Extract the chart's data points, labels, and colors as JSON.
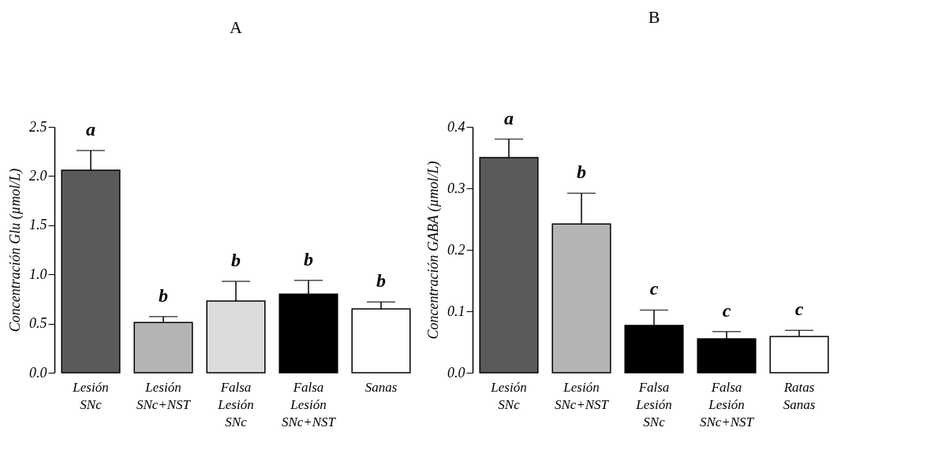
{
  "chart_data": [
    {
      "type": "bar",
      "title": "A",
      "ylabel": "Concentración Glu (µmol/L)",
      "categories": [
        "Lesión SNc",
        "Lesión SNc+NST",
        "Falsa Lesión SNc",
        "Falsa Lesión SNc+NST",
        "Sanas"
      ],
      "values": [
        2.06,
        0.51,
        0.73,
        0.8,
        0.65
      ],
      "colors": [
        "#5a5a5a",
        "#b4b4b4",
        "#dcdcdc",
        "#000000",
        "#ffffff"
      ],
      "errors": [
        [
          2.06,
          2.26
        ],
        [
          0.51,
          0.57
        ],
        [
          0.73,
          0.93
        ],
        [
          0.8,
          0.94
        ],
        [
          0.65,
          0.72
        ]
      ],
      "ylim": [
        0,
        2.5
      ],
      "yticks": [
        {
          "value": 0,
          "label": "0.0"
        },
        0.5,
        {
          "value": 1,
          "label": "1.0"
        },
        1.5,
        {
          "value": 2,
          "label": "2.0"
        },
        2.5
      ],
      "grid": false,
      "legend": false,
      "annotations": [
        "a",
        "b",
        "b",
        "b",
        "b"
      ]
    },
    {
      "type": "bar",
      "title": "B",
      "ylabel": "Concentración GABA (µmol/L)",
      "categories": [
        "Lesión SNc",
        "Lesión SNc+NST",
        "Falsa Lesión SNc",
        "Falsa Lesión SNc+NST",
        "Ratas Sanas"
      ],
      "values": [
        0.35,
        0.242,
        0.077,
        0.055,
        0.059
      ],
      "colors": [
        "#5a5a5a",
        "#b4b4b4",
        "#000000",
        "#000000",
        "#ffffff"
      ],
      "errors": [
        [
          0.35,
          0.38
        ],
        [
          0.242,
          0.292
        ],
        [
          0.077,
          0.102
        ],
        [
          0.055,
          0.067
        ],
        [
          0.059,
          0.069
        ]
      ],
      "ylim": [
        0,
        0.4
      ],
      "yticks": [
        {
          "value": 0,
          "label": "0.0"
        },
        0.1,
        0.2,
        0.3,
        0.4
      ],
      "grid": false,
      "legend": false,
      "annotations": [
        "a",
        "b",
        "c",
        "c",
        "c"
      ]
    }
  ]
}
